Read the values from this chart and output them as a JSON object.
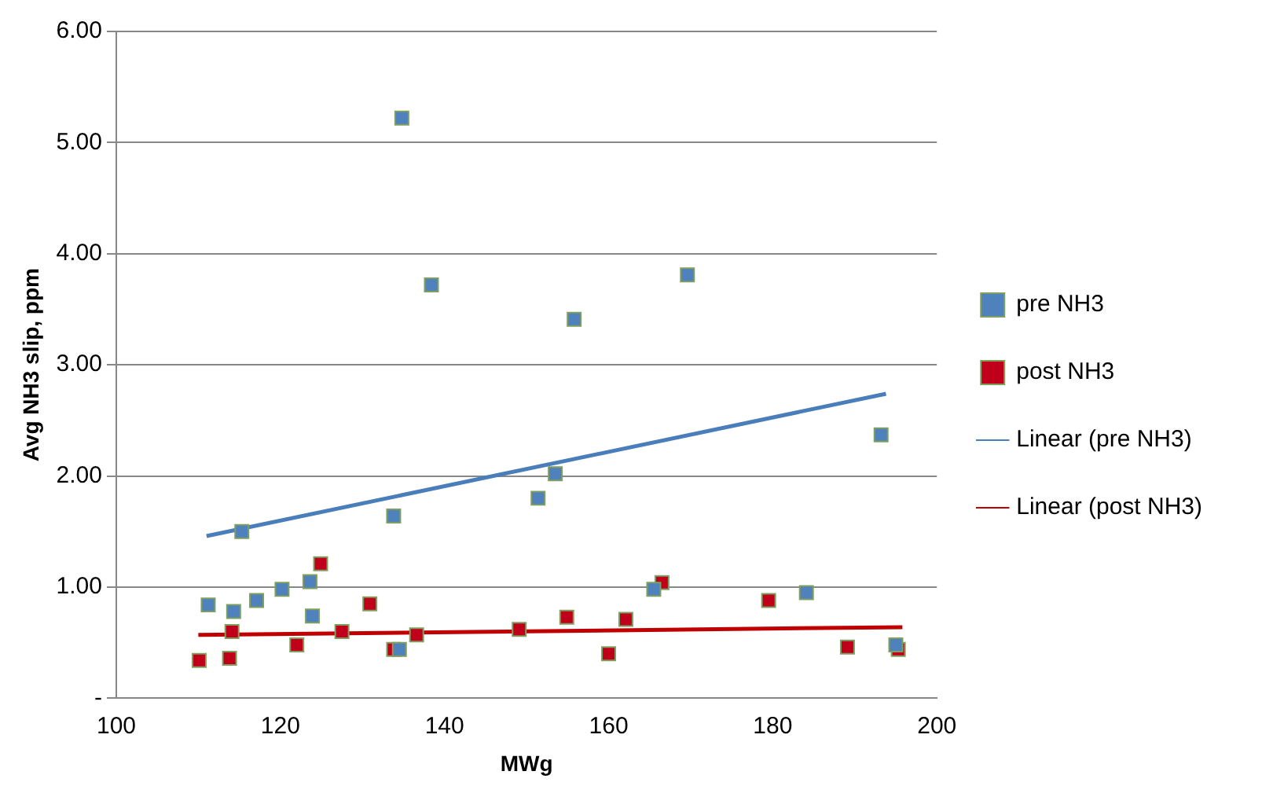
{
  "chart_data": {
    "type": "scatter",
    "xlabel": "MWg",
    "ylabel": "Avg NH3 slip, ppm",
    "xlim": [
      100,
      200
    ],
    "xticks": [
      100,
      120,
      140,
      160,
      180,
      200
    ],
    "ylim": [
      0,
      6
    ],
    "yticks": [
      {
        "value": 0,
        "label": "-"
      },
      {
        "value": 1,
        "label": "1.00"
      },
      {
        "value": 2,
        "label": "2.00"
      },
      {
        "value": 3,
        "label": "3.00"
      },
      {
        "value": 4,
        "label": "4.00"
      },
      {
        "value": 5,
        "label": "5.00"
      },
      {
        "value": 6,
        "label": "6.00"
      }
    ],
    "grid": "y",
    "legend": "right",
    "series": [
      {
        "name": "pre NH3",
        "type": "scatter",
        "marker": "square",
        "color": "#4f81bd",
        "x": [
          134.8,
          138.4,
          155.8,
          169.6,
          115.3,
          133.8,
          111.2,
          114.3,
          117.1,
          120.2,
          123.6,
          123.9,
          134.5,
          153.5,
          151.4,
          193.2,
          165.5,
          184.1,
          195
        ],
        "values": [
          5.22,
          3.72,
          3.41,
          3.81,
          1.5,
          1.64,
          0.84,
          0.78,
          0.88,
          0.98,
          1.05,
          0.74,
          0.44,
          2.02,
          1.8,
          2.37,
          0.98,
          0.95,
          0.48
        ]
      },
      {
        "name": "post NH3",
        "type": "scatter",
        "marker": "square",
        "color": "#c0001a",
        "x": [
          110.1,
          113.8,
          114.1,
          124.9,
          122,
          127.5,
          130.9,
          133.8,
          136.6,
          149.1,
          154.9,
          160,
          162.1,
          166.5,
          179.5,
          189.1,
          195.3
        ],
        "values": [
          0.34,
          0.36,
          0.6,
          1.21,
          0.48,
          0.6,
          0.85,
          0.44,
          0.57,
          0.62,
          0.73,
          0.4,
          0.71,
          1.04,
          0.88,
          0.46,
          0.44
        ]
      },
      {
        "name": "Linear (pre NH3)",
        "type": "line",
        "marker": "none",
        "line_style": "solid",
        "color": "#4a7ebb",
        "x": [
          111,
          193.8
        ],
        "values": [
          1.46,
          2.74
        ]
      },
      {
        "name": "Linear (post NH3)",
        "type": "line",
        "marker": "none",
        "line_style": "solid",
        "color": "#c00000",
        "x": [
          110,
          195.8
        ],
        "values": [
          0.57,
          0.64
        ]
      }
    ]
  }
}
